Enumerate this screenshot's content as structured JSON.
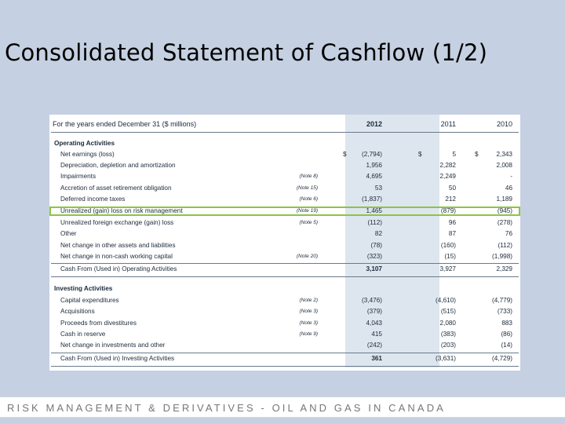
{
  "slide": {
    "title": "Consolidated Statement of Cashflow (1/2)"
  },
  "statement": {
    "header": {
      "label": "For the years ended December 31 ($ millions)",
      "y2012": "2012",
      "y2011": "2011",
      "y2010": "2010"
    },
    "operating": {
      "heading": "Operating Activities",
      "rows": [
        {
          "label": "Net earnings (loss)",
          "note": "",
          "d2012": "$",
          "v2012": "(2,794)",
          "d2011": "$",
          "v2011": "5",
          "d2010": "$",
          "v2010": "2,343"
        },
        {
          "label": "Depreciation, depletion and amortization",
          "note": "",
          "v2012": "1,956",
          "v2011": "2,282",
          "v2010": "2,008"
        },
        {
          "label": "Impairments",
          "note": "(Note 8)",
          "v2012": "4,695",
          "v2011": "2,249",
          "v2010": "-"
        },
        {
          "label": "Accretion of asset retirement obligation",
          "note": "(Note 15)",
          "v2012": "53",
          "v2011": "50",
          "v2010": "46"
        },
        {
          "label": "Deferred income taxes",
          "note": "(Note 6)",
          "v2012": "(1,837)",
          "v2011": "212",
          "v2010": "1,189"
        },
        {
          "label": "Unrealized (gain) loss on risk management",
          "note": "(Note 19)",
          "v2012": "1,465",
          "v2011": "(879)",
          "v2010": "(945)"
        },
        {
          "label": "Unrealized foreign exchange (gain) loss",
          "note": "(Note 5)",
          "v2012": "(112)",
          "v2011": "96",
          "v2010": "(278)"
        },
        {
          "label": "Other",
          "note": "",
          "v2012": "82",
          "v2011": "87",
          "v2010": "76"
        },
        {
          "label": "Net change in other assets and liabilities",
          "note": "",
          "v2012": "(78)",
          "v2011": "(160)",
          "v2010": "(112)"
        },
        {
          "label": "Net change in non-cash working capital",
          "note": "(Note 20)",
          "v2012": "(323)",
          "v2011": "(15)",
          "v2010": "(1,998)"
        }
      ],
      "total": {
        "label": "Cash From (Used in) Operating Activities",
        "v2012": "3,107",
        "v2011": "3,927",
        "v2010": "2,329"
      }
    },
    "investing": {
      "heading": "Investing Activities",
      "rows": [
        {
          "label": "Capital expenditures",
          "note": "(Note 2)",
          "v2012": "(3,476)",
          "v2011": "(4,610)",
          "v2010": "(4,779)"
        },
        {
          "label": "Acquisitions",
          "note": "(Note 3)",
          "v2012": "(379)",
          "v2011": "(515)",
          "v2010": "(733)"
        },
        {
          "label": "Proceeds from divestitures",
          "note": "(Note 3)",
          "v2012": "4,043",
          "v2011": "2,080",
          "v2010": "883"
        },
        {
          "label": "Cash in reserve",
          "note": "(Note 9)",
          "v2012": "415",
          "v2011": "(383)",
          "v2010": "(86)"
        },
        {
          "label": "Net change in investments and other",
          "note": "",
          "v2012": "(242)",
          "v2011": "(203)",
          "v2010": "(14)"
        }
      ],
      "total": {
        "label": "Cash From (Used in) Investing Activities",
        "v2012": "361",
        "v2011": "(3,631)",
        "v2010": "(4,729)"
      }
    }
  },
  "footer": {
    "text": "RISK MANAGEMENT & DERIVATIVES - OIL AND GAS IN CANADA"
  },
  "colors": {
    "background": "#c5d0e2",
    "highlight": "#8cc63f",
    "column2012": "#dde6ee"
  }
}
